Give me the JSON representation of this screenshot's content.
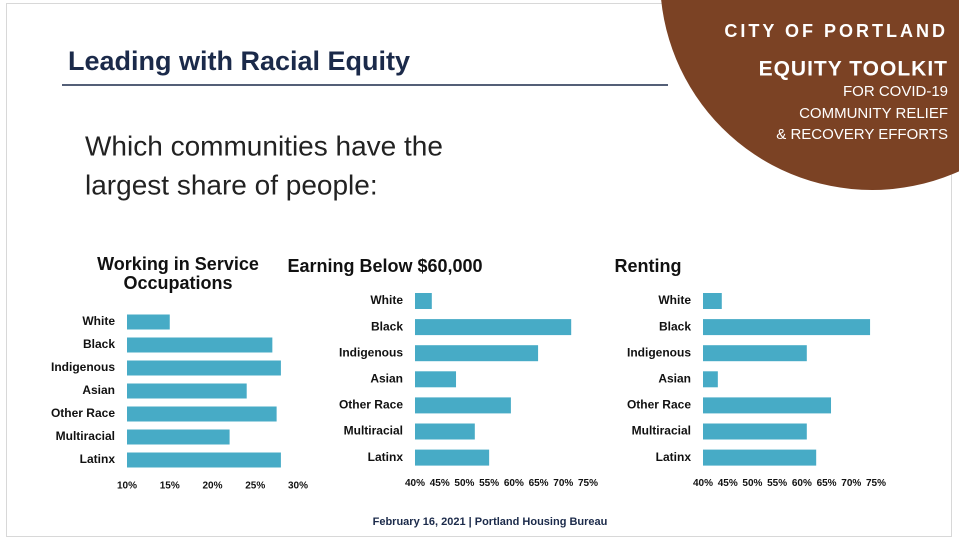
{
  "header": {
    "title": "Leading with Racial Equity",
    "question": [
      "Which communities have the",
      "largest share of people:"
    ]
  },
  "badge": {
    "lines": [
      "CITY OF PORTLAND",
      "EQUITY TOOLKIT",
      "FOR COVID-19",
      "COMMUNITY RELIEF",
      "& RECOVERY EFFORTS"
    ]
  },
  "footer": "February 16, 2021 | Portland Housing Bureau",
  "chart_data": [
    {
      "type": "hbar",
      "title": "Working in Service Occupations",
      "color": "#47abc6",
      "categories": [
        "White",
        "Black",
        "Indigenous",
        "Asian",
        "Other Race",
        "Multiracial",
        "Latinx"
      ],
      "values": [
        15,
        27,
        28,
        24,
        27.5,
        22,
        28
      ],
      "xlim": [
        10,
        30
      ],
      "xticks": [
        {
          "value": 10,
          "label": "10%"
        },
        {
          "value": 15,
          "label": "15%"
        },
        {
          "value": 20,
          "label": "20%"
        },
        {
          "value": 25,
          "label": "25%"
        },
        {
          "value": 30,
          "label": "30%"
        }
      ]
    },
    {
      "type": "hbar",
      "title": "Earning Below $60,000",
      "color": "#47abc6",
      "categories": [
        "White",
        "Black",
        "Indigenous",
        "Asian",
        "Other Race",
        "Multiracial",
        "Latinx"
      ],
      "values": [
        43.4,
        71.6,
        64.9,
        48.3,
        59.4,
        52.1,
        55
      ],
      "xlim": [
        40,
        75
      ],
      "xticks": [
        {
          "value": 40,
          "label": "40%"
        },
        {
          "value": 45,
          "label": "45%"
        },
        {
          "value": 50,
          "label": "50%"
        },
        {
          "value": 55,
          "label": "55%"
        },
        {
          "value": 60,
          "label": "60%"
        },
        {
          "value": 65,
          "label": "65%"
        },
        {
          "value": 70,
          "label": "70%"
        },
        {
          "value": 75,
          "label": "75%"
        }
      ]
    },
    {
      "type": "hbar",
      "title": "Renting",
      "color": "#47abc6",
      "categories": [
        "White",
        "Black",
        "Indigenous",
        "Asian",
        "Other Race",
        "Multiracial",
        "Latinx"
      ],
      "values": [
        43.8,
        73.8,
        61,
        43,
        65.9,
        61,
        62.9
      ],
      "xlim": [
        40,
        75
      ],
      "xticks": [
        {
          "value": 40,
          "label": "40%"
        },
        {
          "value": 45,
          "label": "45%"
        },
        {
          "value": 50,
          "label": "50%"
        },
        {
          "value": 55,
          "label": "55%"
        },
        {
          "value": 60,
          "label": "60%"
        },
        {
          "value": 65,
          "label": "65%"
        },
        {
          "value": 70,
          "label": "70%"
        },
        {
          "value": 75,
          "label": "75%"
        }
      ]
    }
  ]
}
